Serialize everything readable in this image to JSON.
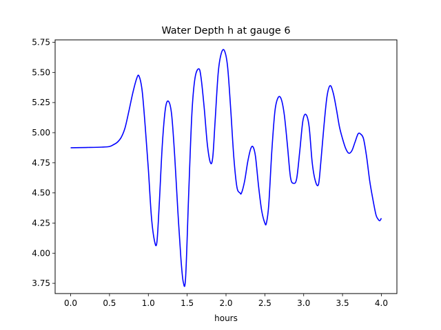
{
  "chart_data": {
    "type": "line",
    "title": "Water Depth h at gauge 6",
    "xlabel": "hours",
    "ylabel": "",
    "xlim": [
      -0.2,
      4.2
    ],
    "ylim": [
      3.665,
      5.77
    ],
    "xticks": [
      0.0,
      0.5,
      1.0,
      1.5,
      2.0,
      2.5,
      3.0,
      3.5,
      4.0
    ],
    "xtick_labels": [
      "0.0",
      "0.5",
      "1.0",
      "1.5",
      "2.0",
      "2.5",
      "3.0",
      "3.5",
      "4.0"
    ],
    "yticks": [
      3.75,
      4.0,
      4.25,
      4.5,
      4.75,
      5.0,
      5.25,
      5.5,
      5.75
    ],
    "ytick_labels": [
      "3.75",
      "4.00",
      "4.25",
      "4.50",
      "4.75",
      "5.00",
      "5.25",
      "5.50",
      "5.75"
    ],
    "grid": false,
    "series": [
      {
        "color": "#0000ff",
        "x": [
          0.0,
          0.2,
          0.4,
          0.5,
          0.55,
          0.6,
          0.65,
          0.7,
          0.75,
          0.8,
          0.85,
          0.88,
          0.92,
          0.96,
          1.0,
          1.04,
          1.08,
          1.11,
          1.14,
          1.18,
          1.22,
          1.26,
          1.3,
          1.34,
          1.38,
          1.42,
          1.45,
          1.48,
          1.52,
          1.56,
          1.6,
          1.65,
          1.68,
          1.72,
          1.76,
          1.8,
          1.83,
          1.86,
          1.9,
          1.94,
          1.98,
          2.02,
          2.06,
          2.1,
          2.14,
          2.18,
          2.2,
          2.24,
          2.28,
          2.32,
          2.35,
          2.38,
          2.42,
          2.46,
          2.5,
          2.52,
          2.55,
          2.59,
          2.63,
          2.67,
          2.71,
          2.75,
          2.79,
          2.83,
          2.87,
          2.91,
          2.95,
          2.99,
          3.03,
          3.07,
          3.11,
          3.15,
          3.19,
          3.22,
          3.26,
          3.3,
          3.34,
          3.38,
          3.42,
          3.46,
          3.5,
          3.54,
          3.58,
          3.62,
          3.66,
          3.7,
          3.73,
          3.77,
          3.81,
          3.85,
          3.89,
          3.93,
          3.96,
          3.98,
          4.0
        ],
        "y": [
          4.875,
          4.877,
          4.88,
          4.885,
          4.9,
          4.92,
          4.96,
          5.04,
          5.18,
          5.33,
          5.45,
          5.47,
          5.35,
          5.05,
          4.7,
          4.3,
          4.1,
          4.09,
          4.4,
          4.9,
          5.2,
          5.26,
          5.15,
          4.8,
          4.35,
          3.95,
          3.76,
          3.8,
          4.5,
          5.15,
          5.45,
          5.53,
          5.45,
          5.2,
          4.9,
          4.75,
          4.8,
          5.1,
          5.5,
          5.66,
          5.68,
          5.55,
          5.2,
          4.8,
          4.55,
          4.5,
          4.5,
          4.6,
          4.76,
          4.87,
          4.88,
          4.8,
          4.55,
          4.35,
          4.25,
          4.25,
          4.4,
          4.85,
          5.18,
          5.29,
          5.28,
          5.15,
          4.9,
          4.63,
          4.58,
          4.62,
          4.85,
          5.1,
          5.15,
          5.05,
          4.75,
          4.6,
          4.57,
          4.75,
          5.05,
          5.3,
          5.39,
          5.33,
          5.2,
          5.05,
          4.95,
          4.87,
          4.83,
          4.85,
          4.92,
          4.99,
          4.99,
          4.95,
          4.8,
          4.6,
          4.45,
          4.32,
          4.28,
          4.27,
          4.29
        ]
      }
    ]
  }
}
